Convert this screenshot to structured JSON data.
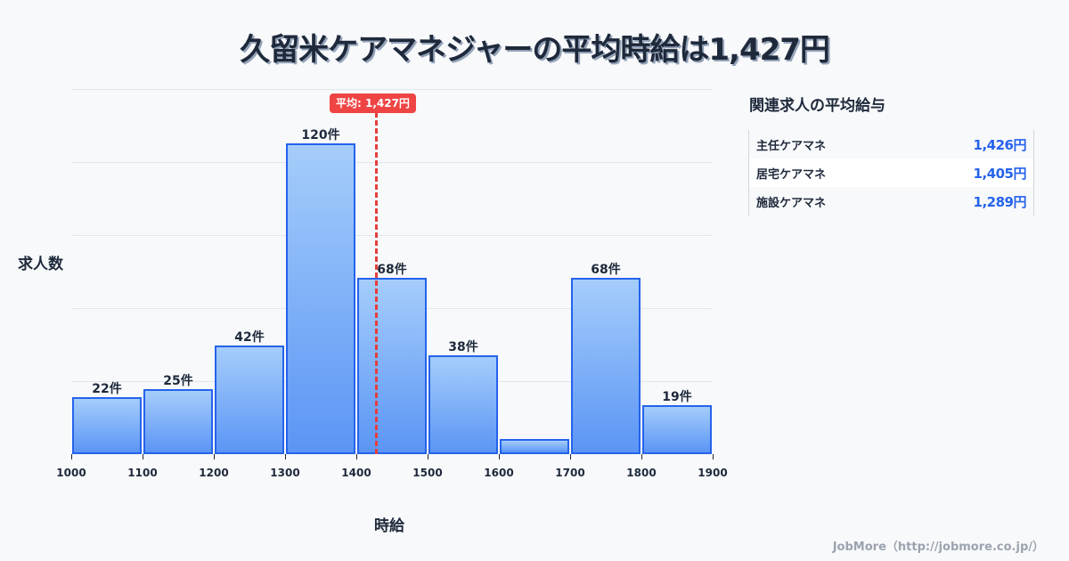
{
  "title": "久留米ケアマネジャーの平均時給は1,427円",
  "chart_data": {
    "type": "bar",
    "title": "久留米ケアマネジャーの平均時給は1,427円",
    "xlabel": "時給",
    "ylabel": "求人数",
    "x_edges": [
      1000,
      1100,
      1200,
      1300,
      1400,
      1500,
      1600,
      1700,
      1800,
      1900
    ],
    "categories": [
      "1000-1100",
      "1100-1200",
      "1200-1300",
      "1300-1400",
      "1400-1500",
      "1500-1600",
      "1600-1700",
      "1700-1800",
      "1800-1900"
    ],
    "values": [
      22,
      25,
      42,
      120,
      68,
      38,
      6,
      68,
      19
    ],
    "labels": [
      "22件",
      "25件",
      "42件",
      "120件",
      "68件",
      "38件",
      "",
      "68件",
      "19件"
    ],
    "mean": 1427,
    "mean_label": "平均: 1,427円",
    "xlim": [
      1000,
      1900
    ],
    "ylim": [
      0,
      141
    ],
    "grid": true,
    "colors": {
      "bar_fill_top": "#a5cdfb",
      "bar_fill_bottom": "#5b95f5",
      "bar_border": "#2563eb",
      "mean_line": "#e53e3e"
    }
  },
  "axis": {
    "x_ticks": [
      "1000",
      "1100",
      "1200",
      "1300",
      "1400",
      "1500",
      "1600",
      "1700",
      "1800",
      "1900"
    ],
    "x_label": "時給",
    "y_label": "求人数"
  },
  "mean_badge": "平均: 1,427円",
  "side_panel": {
    "title": "関連求人の平均給与",
    "rows": [
      {
        "name": "主任ケアマネ",
        "value": "1,426円"
      },
      {
        "name": "居宅ケアマネ",
        "value": "1,405円"
      },
      {
        "name": "施設ケアマネ",
        "value": "1,289円"
      }
    ]
  },
  "footer": "JobMore（http://jobmore.co.jp/）"
}
